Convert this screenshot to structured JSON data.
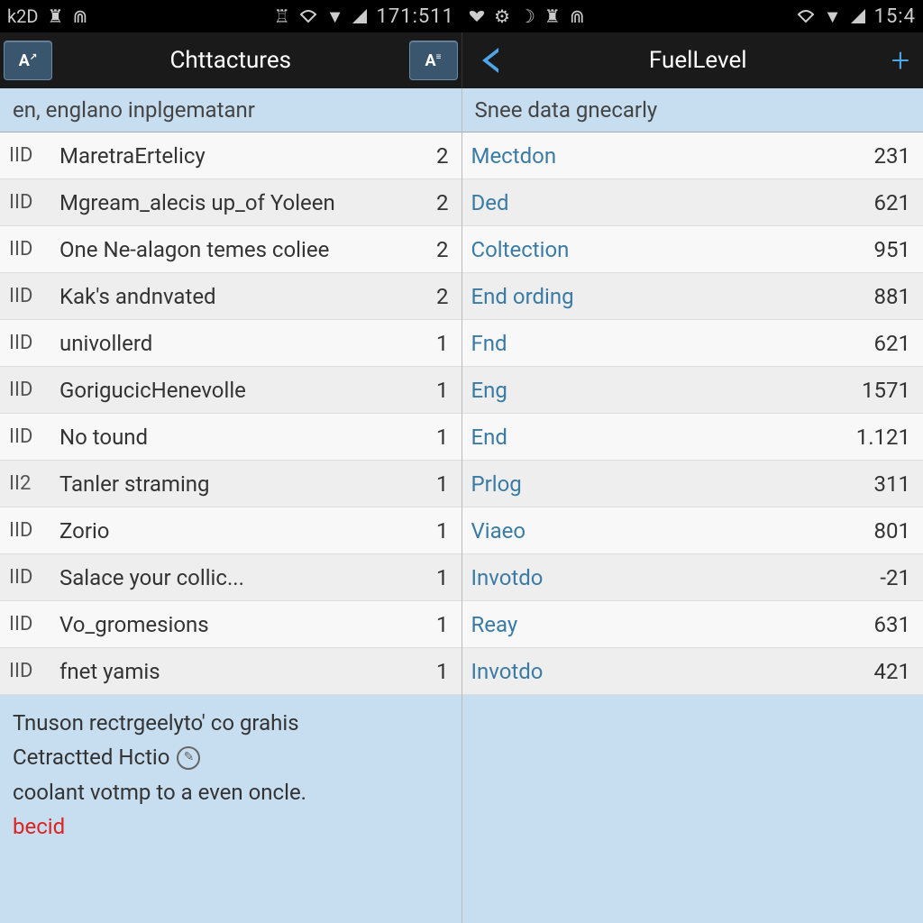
{
  "status": {
    "left": {
      "label": "k2D",
      "time": "171:511"
    },
    "right": {
      "time": "15:4"
    }
  },
  "appbar": {
    "left": {
      "text_icon": "A",
      "title": "Chttactures",
      "text_icon2": "A"
    },
    "right": {
      "title": "FuelLevel",
      "plus": "+"
    }
  },
  "left_pane": {
    "header": "en, englano inplgematanr",
    "rows": [
      {
        "id": "IID",
        "label": "MaretraErtelicy",
        "count": "2"
      },
      {
        "id": "IID",
        "label": "Mgream_alecis up_of Yoleen",
        "count": "2"
      },
      {
        "id": "IID",
        "label": "One Ne-alagon temes coliee",
        "count": "2"
      },
      {
        "id": "IID",
        "label": "Kak's andnvated",
        "count": "2"
      },
      {
        "id": "IID",
        "label": "univollerd",
        "count": "1"
      },
      {
        "id": "IID",
        "label": "GorigucicHenevolle",
        "count": "1"
      },
      {
        "id": "IID",
        "label": "No tound",
        "count": "1"
      },
      {
        "id": "II2",
        "label": "Tanler straming",
        "count": "1"
      },
      {
        "id": "IID",
        "label": "Zorio",
        "count": "1"
      },
      {
        "id": "IID",
        "label": "Salace your collic...",
        "count": "1"
      },
      {
        "id": "IID",
        "label": "Vo_gromesions",
        "count": "1"
      },
      {
        "id": "IID",
        "label": "fnet yamis",
        "count": "1"
      }
    ],
    "footer": {
      "line1": "Tnuson rectrgeelyto' co grahis",
      "line2": "Cetractted Hctio",
      "line3": "coolant votmp to a even oncle.",
      "line4": "becid"
    }
  },
  "right_pane": {
    "header": "Snee data gnecarly",
    "rows": [
      {
        "label": "Mectdon",
        "value": "231"
      },
      {
        "label": "Ded",
        "value": "621"
      },
      {
        "label": "Coltection",
        "value": "951"
      },
      {
        "label": "End ording",
        "value": "881"
      },
      {
        "label": "Fnd",
        "value": "621"
      },
      {
        "label": "Eng",
        "value": "1571"
      },
      {
        "label": "End",
        "value": "1.121"
      },
      {
        "label": "Prlog",
        "value": "311"
      },
      {
        "label": "Viaeo",
        "value": "801"
      },
      {
        "label": "Invotdo",
        "value": "-21"
      },
      {
        "label": "Reay",
        "value": "631"
      },
      {
        "label": "Invotdo",
        "value": "421"
      }
    ]
  },
  "colors": {
    "status_bg": "#000000",
    "appbar_bg": "#1a1a1a",
    "accent_blue": "#4da6e8",
    "link_blue": "#3a7ba5",
    "section_bg": "#c7def0",
    "row_even": "#eeeeee",
    "row_odd": "#f8f8f8",
    "error_red": "#dd2222"
  }
}
